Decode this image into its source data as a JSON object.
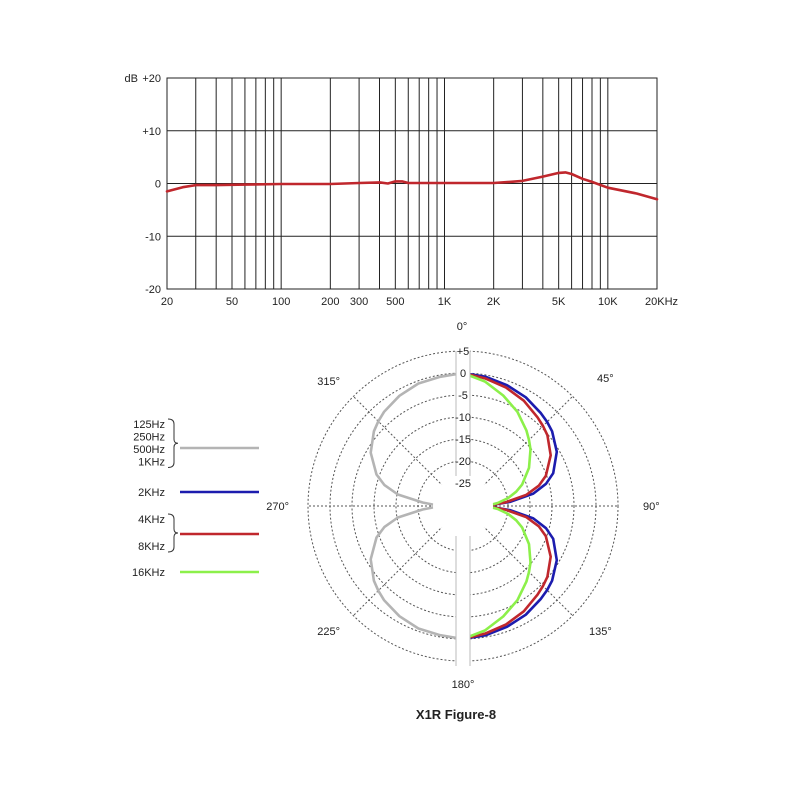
{
  "chart_data": [
    {
      "type": "line",
      "x_scale": "log",
      "xlim": [
        20,
        20000
      ],
      "ylim": [
        -20,
        20
      ],
      "y_axis_unit": "dB",
      "y_tick_labels": [
        "+20",
        "+10",
        "0",
        "-10",
        "-20"
      ],
      "x_tick_values": [
        20,
        50,
        100,
        200,
        300,
        500,
        1000,
        2000,
        5000,
        10000,
        20000
      ],
      "x_tick_labels": [
        "20",
        "50",
        "100",
        "200",
        "300",
        "500",
        "1K",
        "2K",
        "5K",
        "10K",
        "20KHz"
      ],
      "grid": true,
      "series": [
        {
          "color": "#c0272d",
          "x": [
            20,
            25,
            30,
            40,
            60,
            100,
            200,
            300,
            400,
            450,
            500,
            550,
            600,
            800,
            1000,
            1500,
            2000,
            2500,
            3000,
            4000,
            5000,
            5500,
            6000,
            7000,
            8000,
            10000,
            15000,
            20000
          ],
          "y": [
            -1.5,
            -0.7,
            -0.3,
            -0.3,
            -0.2,
            -0.1,
            -0.1,
            0.1,
            0.2,
            0.0,
            0.4,
            0.4,
            0.1,
            0.1,
            0.1,
            0.1,
            0.1,
            0.3,
            0.5,
            1.3,
            2.0,
            2.1,
            1.8,
            0.9,
            0.3,
            -0.8,
            -1.9,
            -3.0
          ]
        }
      ]
    },
    {
      "type": "polar",
      "title": "X1R Figure-8",
      "angle_labels": [
        "0°",
        "45°",
        "90°",
        "135°",
        "180°",
        "225°",
        "270°",
        "315°"
      ],
      "radial_labels": [
        "+5",
        "0",
        "-5",
        "-10",
        "-15",
        "-20",
        "-25"
      ],
      "radial_values": [
        5,
        0,
        -5,
        -10,
        -15,
        -20,
        -25
      ],
      "angle_unit": "degrees",
      "value_unit": "dB",
      "legend": [
        {
          "labels": [
            "125Hz",
            "250Hz",
            "500Hz",
            "1KHz"
          ],
          "color": "#b4b4b4"
        },
        {
          "labels": [
            "2KHz"
          ],
          "color": "#1c1cae"
        },
        {
          "labels": [
            "4KHz",
            "8KHz"
          ],
          "color": "#c0272d"
        },
        {
          "labels": [
            "16KHz"
          ],
          "color": "#8cf04a"
        }
      ],
      "series": [
        {
          "color": "#b4b4b4",
          "side": "left",
          "angles": [
            0,
            10,
            20,
            30,
            40,
            45,
            50,
            60,
            70,
            75,
            80,
            85,
            90
          ],
          "values": [
            0,
            -0.4,
            -0.6,
            -1.3,
            -2.3,
            -3,
            -3.8,
            -6.0,
            -9.3,
            -11.7,
            -15.2,
            -21,
            -25
          ]
        },
        {
          "color": "#1c1cae",
          "side": "right",
          "angles": [
            0,
            10,
            20,
            30,
            40,
            45,
            50,
            60,
            70,
            75,
            80,
            85,
            90
          ],
          "values": [
            0,
            -0.4,
            -1.0,
            -1.7,
            -2.7,
            -3.2,
            -3.8,
            -5.6,
            -8.4,
            -10.7,
            -14.0,
            -19.5,
            -25
          ]
        },
        {
          "color": "#c0272d",
          "side": "right",
          "angles": [
            0,
            10,
            20,
            30,
            40,
            45,
            50,
            60,
            70,
            75,
            80,
            85,
            90
          ],
          "values": [
            0,
            -0.8,
            -1.6,
            -2.6,
            -3.9,
            -4.5,
            -5.2,
            -7.2,
            -10.2,
            -12.4,
            -15.6,
            -20.5,
            -25
          ]
        },
        {
          "color": "#8cf04a",
          "side": "right",
          "angles": [
            0,
            10,
            20,
            30,
            40,
            45,
            50,
            60,
            70,
            75,
            80,
            85,
            90
          ],
          "values": [
            0,
            -1.5,
            -3.5,
            -5.5,
            -7.8,
            -9,
            -10.2,
            -12.9,
            -15.9,
            -17.7,
            -19.8,
            -22.3,
            -25
          ]
        }
      ]
    }
  ]
}
